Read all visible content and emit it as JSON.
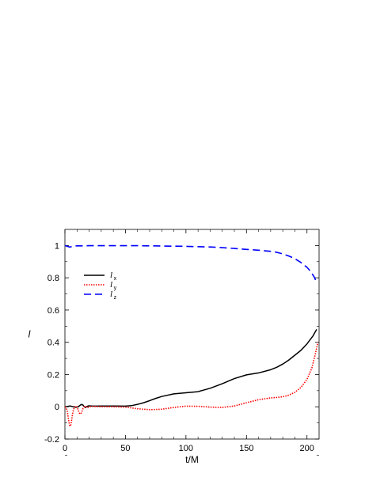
{
  "chart_data": {
    "type": "line",
    "title": "",
    "xlabel": "t/M",
    "ylabel": "l",
    "xlim": [
      0,
      210
    ],
    "ylim": [
      -0.2,
      1.1
    ],
    "x_ticks": [
      0,
      50,
      100,
      150,
      200
    ],
    "y_ticks": [
      -0.2,
      0,
      0.2,
      0.4,
      0.6,
      0.8,
      1
    ],
    "x_tick_labels": [
      "0",
      "50",
      "100",
      "150",
      "200"
    ],
    "y_tick_labels": [
      "-0.2",
      "0",
      "0.2",
      "0.4",
      "0.6",
      "0.8",
      "1"
    ],
    "grid": false,
    "legend_position": "upper-left",
    "series": [
      {
        "name": "l",
        "subscript": "x",
        "color": "#000000",
        "style": "solid",
        "x": [
          0,
          2,
          4,
          5,
          7,
          9,
          11,
          12,
          13,
          14,
          15,
          16,
          17,
          18,
          19,
          20,
          22,
          25,
          30,
          40,
          50,
          55,
          60,
          65,
          70,
          75,
          80,
          90,
          100,
          110,
          120,
          130,
          140,
          150,
          160,
          170,
          175,
          180,
          185,
          190,
          195,
          200,
          205,
          208
        ],
        "y": [
          0.0,
          0.002,
          0.005,
          0.004,
          0.0,
          -0.003,
          0.0,
          0.006,
          0.012,
          0.015,
          0.01,
          0.0,
          -0.004,
          0.0,
          0.005,
          0.006,
          0.005,
          0.004,
          0.005,
          0.005,
          0.004,
          0.007,
          0.015,
          0.025,
          0.038,
          0.052,
          0.064,
          0.08,
          0.087,
          0.094,
          0.115,
          0.143,
          0.175,
          0.198,
          0.21,
          0.23,
          0.245,
          0.265,
          0.29,
          0.32,
          0.35,
          0.39,
          0.44,
          0.48
        ]
      },
      {
        "name": "l",
        "subscript": "y",
        "color": "#ff0000",
        "style": "dotted",
        "x": [
          0,
          1,
          2,
          3,
          4,
          5,
          6,
          7,
          8,
          9,
          10,
          11,
          12,
          13,
          14,
          15,
          16,
          17,
          18,
          19,
          20,
          22,
          25,
          30,
          40,
          50,
          60,
          70,
          80,
          90,
          100,
          110,
          120,
          130,
          140,
          150,
          160,
          170,
          175,
          180,
          185,
          190,
          195,
          200,
          204,
          207,
          209
        ],
        "y": [
          0.0,
          -0.005,
          -0.03,
          -0.08,
          -0.12,
          -0.11,
          -0.06,
          -0.02,
          0.0,
          0.005,
          0.0,
          -0.02,
          -0.04,
          -0.045,
          -0.03,
          -0.01,
          0.0,
          0.005,
          0.0,
          -0.005,
          0.0,
          0.003,
          0.002,
          0.0,
          0.0,
          -0.002,
          -0.012,
          -0.018,
          -0.015,
          -0.004,
          0.004,
          0.003,
          -0.002,
          -0.004,
          0.005,
          0.025,
          0.044,
          0.055,
          0.058,
          0.062,
          0.072,
          0.09,
          0.12,
          0.17,
          0.24,
          0.33,
          0.4
        ]
      },
      {
        "name": "l",
        "subscript": "z",
        "color": "#0000ff",
        "style": "dashed",
        "x": [
          0,
          2,
          4,
          6,
          8,
          10,
          15,
          20,
          30,
          40,
          50,
          60,
          70,
          80,
          90,
          100,
          110,
          120,
          130,
          140,
          150,
          160,
          170,
          175,
          180,
          185,
          190,
          195,
          200,
          203,
          206,
          208
        ],
        "y": [
          1.0,
          0.995,
          0.99,
          0.995,
          0.998,
          0.998,
          0.998,
          0.999,
          0.999,
          0.999,
          0.999,
          0.999,
          0.998,
          0.997,
          0.996,
          0.995,
          0.993,
          0.991,
          0.987,
          0.982,
          0.976,
          0.971,
          0.964,
          0.958,
          0.948,
          0.935,
          0.918,
          0.895,
          0.865,
          0.84,
          0.805,
          0.77
        ]
      }
    ]
  }
}
